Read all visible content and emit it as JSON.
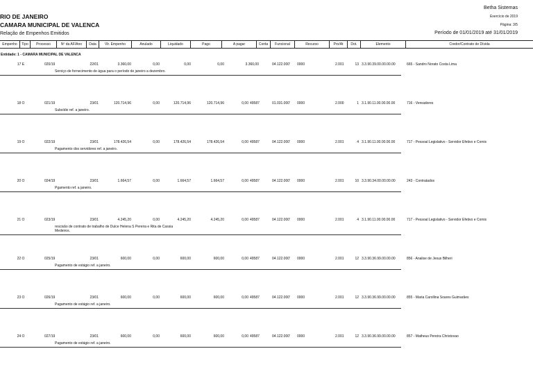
{
  "header": {
    "state": "RIO DE JANEIRO",
    "entity": "CAMARA MUNICIPAL DE VALENCA",
    "report": "Relação de Empenhos Emitidos",
    "vendor": "Betha Sistemas",
    "exercise": "Exercício de 2019",
    "page": "Página: 3/5",
    "period": "Período de 01/01/2019 até 31/01/2019"
  },
  "columns": [
    "Empenho",
    "Tipo",
    "Processo",
    "Nº da AF/Ano",
    "Data",
    "Vlr. Empenho",
    "Anulado",
    "Liquidado",
    "Pago",
    "A pagar",
    "Conta",
    "Funcional",
    "Recurso",
    "Pro/At",
    "Dot.",
    "Elemento",
    "Credor/Contrato de Dívida"
  ],
  "group": "Entidade: 1 - CAMARA MUNICIPAL DE VALENCA",
  "rows": [
    {
      "empenho": "17 E",
      "processo": "020/19",
      "data": "22/01",
      "valor": "3.360,00",
      "anulado": "0,00",
      "liquidado": "0,00",
      "pago": "0,00",
      "apagar": "3.360,00",
      "conta": "",
      "funcional": "04.122.000'",
      "recurso": "0000",
      "proat": "2.001",
      "dot": "13",
      "elemento": "3.3.90.39.00.00.00.00",
      "credor": "665 - Sandro Norato Costa Lima",
      "desc": "Serviço de fornecimento de água para o período de janeiro a dezembro."
    },
    {
      "empenho": "18 O",
      "processo": "021/19",
      "data": "23/01",
      "valor": "120.714,96",
      "anulado": "0,00",
      "liquidado": "120.714,96",
      "pago": "120.714,96",
      "apagar": "0,00",
      "conta": "49587",
      "funcional": "01.031.000'",
      "recurso": "0000",
      "proat": "2.000",
      "dot": "1",
      "elemento": "3.1.90.11.00.00.00.00",
      "credor": "716 - Vereadores",
      "desc": "Subsídio ref. a janeiro."
    },
    {
      "empenho": "19 O",
      "processo": "022/19",
      "data": "23/01",
      "valor": "178.426,54",
      "anulado": "0,00",
      "liquidado": "178.426,54",
      "pago": "178.426,54",
      "apagar": "0,00",
      "conta": "49587",
      "funcional": "04.122.000'",
      "recurso": "0000",
      "proat": "2.001",
      "dot": "4",
      "elemento": "3.1.90.11.00.00.00.00",
      "credor": "717 - Pessoal Legislativo - Servidor Efetivo e Comis",
      "desc": "Pagamento dos servidores ref. a janeiro."
    },
    {
      "empenho": "20 O",
      "processo": "024/19",
      "data": "23/01",
      "valor": "1.664,57",
      "anulado": "0,00",
      "liquidado": "1.664,57",
      "pago": "1.664,57",
      "apagar": "0,00",
      "conta": "49587",
      "funcional": "04.122.000'",
      "recurso": "0000",
      "proat": "2.001",
      "dot": "10",
      "elemento": "3.3.90.34.00.00.00.00",
      "credor": "243 - Contratados",
      "desc": "Pgamento ref. a janeiro."
    },
    {
      "empenho": "21 O",
      "processo": "023/19",
      "data": "23/01",
      "valor": "4.245,20",
      "anulado": "0,00",
      "liquidado": "4.245,20",
      "pago": "4.245,20",
      "apagar": "0,00",
      "conta": "49587",
      "funcional": "04.122.000'",
      "recurso": "0000",
      "proat": "2.001",
      "dot": "4",
      "elemento": "3.1.90.11.00.00.00.00",
      "credor": "717 - Pessoal Legislativo - Servidor Efetivo e Comis",
      "desc": "rescisão de contrato de trabalho de Dulce Helena S Pereira e Rita de Cassia",
      "desc2": "Medeiros."
    },
    {
      "empenho": "22 O",
      "processo": "025/19",
      "data": "23/01",
      "valor": "600,00",
      "anulado": "0,00",
      "liquidado": "600,00",
      "pago": "600,00",
      "apagar": "0,00",
      "conta": "49587",
      "funcional": "04.122.000'",
      "recurso": "0000",
      "proat": "2.001",
      "dot": "12",
      "elemento": "3.3.90.36.99.00.00.00",
      "credor": "856 - Analise de Jesus Bilheri",
      "desc": "Pagamento de estágio ref. a janeiro."
    },
    {
      "empenho": "23 O",
      "processo": "026/19",
      "data": "23/01",
      "valor": "600,00",
      "anulado": "0,00",
      "liquidado": "600,00",
      "pago": "600,00",
      "apagar": "0,00",
      "conta": "49587",
      "funcional": "04.122.000'",
      "recurso": "0000",
      "proat": "2.001",
      "dot": "12",
      "elemento": "3.3.90.36.99.00.00.00",
      "credor": "855 - Maria Carollina Soares Guimarães",
      "desc": "Pagamento de estágio ref. a janeiro."
    },
    {
      "empenho": "24 O",
      "processo": "027/19",
      "data": "23/01",
      "valor": "600,00",
      "anulado": "0,00",
      "liquidado": "600,00",
      "pago": "600,00",
      "apagar": "0,00",
      "conta": "49587",
      "funcional": "04.122.000'",
      "recurso": "0000",
      "proat": "2.001",
      "dot": "12",
      "elemento": "3.3.90.36.99.00.00.00",
      "credor": "857 - Matheus Pereira Christovao",
      "desc": "Pagamento de estágio ref. a janeiro."
    }
  ]
}
